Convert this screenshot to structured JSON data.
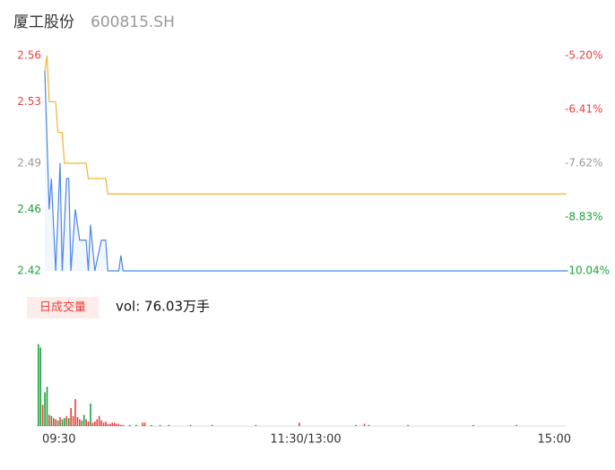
{
  "chart_data": {
    "type": "intraday",
    "title": "厦工股份",
    "subtitle": "600815.SH",
    "xlim": [
      0,
      240
    ],
    "xticks": [
      {
        "value": 0,
        "label": "09:30"
      },
      {
        "value": 120,
        "label": "11:30/13:00"
      },
      {
        "value": 240,
        "label": "15:00"
      }
    ],
    "ylim": [
      2.42,
      2.56
    ],
    "yticks": [
      2.42,
      2.46,
      2.49,
      2.53,
      2.56
    ],
    "ytick_colors": [
      "#1aa33a",
      "#1aa33a",
      "#999999",
      "#e8413d",
      "#e8413d"
    ],
    "y2lim": [
      -10.04,
      -5.2
    ],
    "y2ticks": [
      {
        "value": -10.04,
        "label": "-10.04%"
      },
      {
        "value": -8.83,
        "label": "-8.83%"
      },
      {
        "value": -7.62,
        "label": "-7.62%"
      },
      {
        "value": -6.41,
        "label": "-6.41%"
      },
      {
        "value": -5.2,
        "label": "-5.20%"
      }
    ],
    "y2tick_colors": [
      "#1aa33a",
      "#1aa33a",
      "#999999",
      "#e8413d",
      "#e8413d"
    ],
    "series": [
      {
        "name": "price",
        "color": "#4a86e8",
        "x": [
          0,
          2,
          3,
          5,
          7,
          8,
          10,
          11,
          12,
          14,
          16,
          19,
          20,
          21,
          23,
          26,
          28,
          29,
          34,
          35,
          36,
          240
        ],
        "values": [
          2.55,
          2.46,
          2.48,
          2.42,
          2.49,
          2.42,
          2.48,
          2.48,
          2.42,
          2.46,
          2.44,
          2.44,
          2.42,
          2.45,
          2.42,
          2.44,
          2.44,
          2.42,
          2.42,
          2.43,
          2.42,
          2.42
        ]
      },
      {
        "name": "average",
        "color": "#f5b335",
        "x": [
          0,
          1,
          2,
          5,
          6,
          8,
          9,
          19,
          20,
          28,
          29,
          240
        ],
        "values": [
          2.55,
          2.56,
          2.53,
          2.53,
          2.51,
          2.51,
          2.49,
          2.49,
          2.48,
          2.48,
          2.47,
          2.47
        ]
      }
    ],
    "volume_title": "日成交量",
    "volume_label": "vol: 76.03万手",
    "volume": {
      "ylim": [
        0,
        8
      ],
      "x": [
        0,
        1,
        2,
        3,
        4,
        5,
        6,
        7,
        8,
        9,
        10,
        11,
        12,
        13,
        14,
        15,
        16,
        17,
        18,
        19,
        20,
        21,
        22,
        23,
        24,
        25,
        26,
        27,
        28,
        29,
        30,
        31,
        32,
        33,
        34,
        35,
        36,
        37,
        38,
        39,
        42,
        45,
        48,
        49,
        52,
        56,
        60,
        70,
        80,
        100,
        120,
        146,
        150,
        152,
        170,
        200,
        220
      ],
      "values": [
        7.3,
        7.0,
        1.9,
        3.0,
        3.5,
        1.0,
        0.9,
        0.7,
        0.6,
        0.5,
        0.8,
        0.6,
        0.7,
        0.9,
        0.7,
        1.6,
        0.9,
        2.4,
        0.8,
        0.6,
        0.5,
        1.0,
        0.6,
        0.4,
        2.0,
        0.3,
        0.4,
        0.6,
        0.9,
        0.5,
        0.3,
        0.4,
        0.2,
        0.2,
        0.3,
        0.3,
        0.2,
        0.2,
        0.1,
        0.1,
        0.1,
        0.1,
        0.3,
        0.3,
        0.1,
        0.1,
        0.1,
        0.1,
        0.1,
        0.1,
        0.3,
        0.1,
        0.2,
        0.1,
        0.1,
        0.1,
        0.1
      ],
      "colors": [
        "#1aa33a",
        "#1aa33a",
        "#e8413d",
        "#1aa33a",
        "#1aa33a",
        "#e8413d",
        "#1aa33a",
        "#e8413d",
        "#e8413d",
        "#1aa33a",
        "#e8413d",
        "#1aa33a",
        "#1aa33a",
        "#e8413d",
        "#1aa33a",
        "#e8413d",
        "#e8413d",
        "#e8413d",
        "#e8413d",
        "#e8413d",
        "#1aa33a",
        "#1aa33a",
        "#e8413d",
        "#e8413d",
        "#1aa33a",
        "#e8413d",
        "#e8413d",
        "#e8413d",
        "#e8413d",
        "#e8413d",
        "#e8413d",
        "#e8413d",
        "#e8413d",
        "#e8413d",
        "#e8413d",
        "#e8413d",
        "#e8413d",
        "#e8413d",
        "#e8413d",
        "#e8413d",
        "#e8413d",
        "#1aa33a",
        "#e8413d",
        "#e8413d",
        "#1aa33a",
        "#e8413d",
        "#e8413d",
        "#e8413d",
        "#1aa33a",
        "#e8413d",
        "#e8413d",
        "#e8413d",
        "#e8413d",
        "#e8413d",
        "#1aa33a",
        "#e8413d",
        "#e8413d"
      ]
    }
  }
}
